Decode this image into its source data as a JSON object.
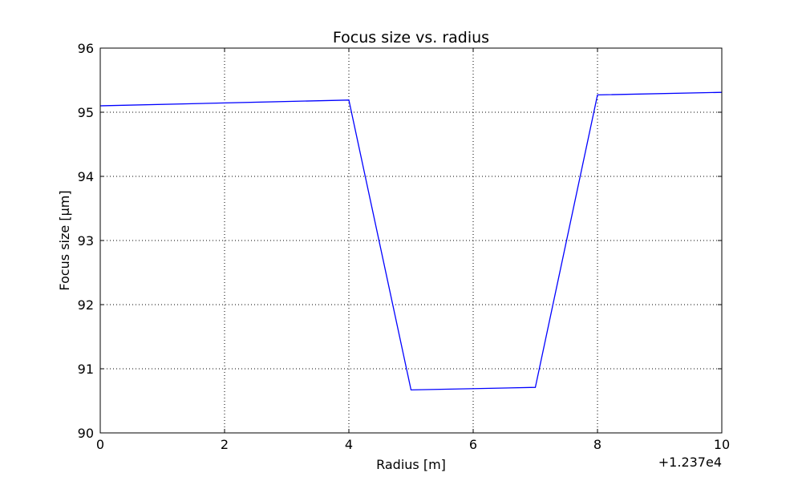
{
  "chart_data": {
    "type": "line",
    "title": "Focus size vs. radius",
    "xlabel": "Radius [m]",
    "ylabel": "Focus size [µm]",
    "x_offset_label": "+1.237e4",
    "xlim": [
      0,
      10
    ],
    "ylim": [
      90,
      96
    ],
    "xticks": [
      "0",
      "2",
      "4",
      "6",
      "8",
      "10"
    ],
    "yticks": [
      "90",
      "91",
      "92",
      "93",
      "94",
      "95",
      "96"
    ],
    "grid": true,
    "series": [
      {
        "color": "#0000ff",
        "x": [
          0,
          4,
          5,
          7,
          8,
          10
        ],
        "y": [
          95.1,
          95.19,
          90.67,
          90.71,
          95.27,
          95.31
        ]
      }
    ]
  }
}
